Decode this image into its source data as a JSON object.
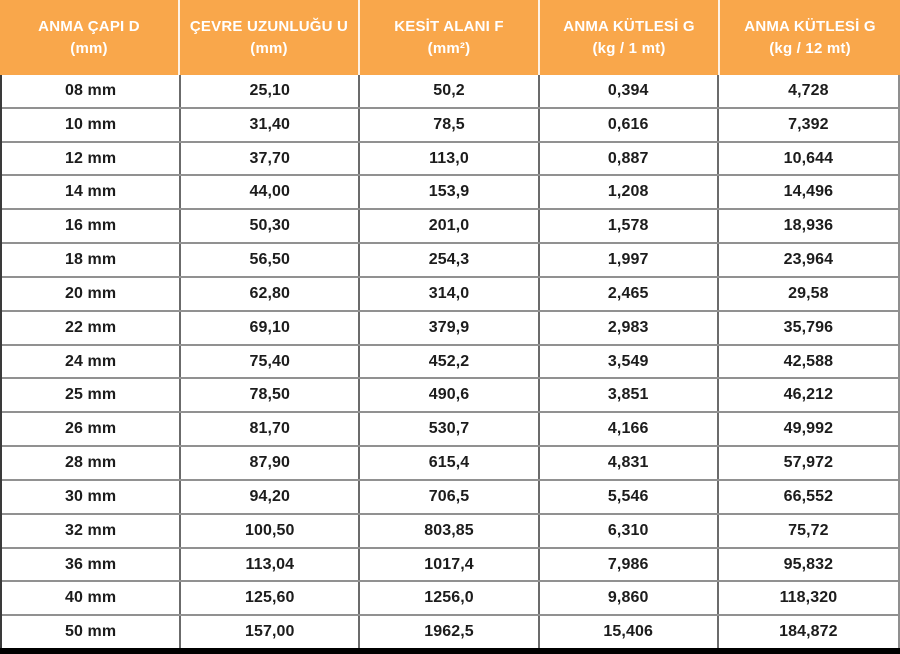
{
  "accent_color": "#F9A74B",
  "text_colors": {
    "header_text": "#FFFFFF",
    "body_text": "#1C1C1C",
    "grid_line": "#8F8F8F",
    "bottom_border": "#000000"
  },
  "table": {
    "headers": [
      {
        "title": "ANMA ÇAPI D",
        "unit": "(mm)"
      },
      {
        "title": "ÇEVRE UZUNLUĞU U",
        "unit": "(mm)"
      },
      {
        "title": "KESİT ALANI F",
        "unit": "(mm²)"
      },
      {
        "title": "ANMA KÜTLESİ G",
        "unit": "(kg / 1 mt)"
      },
      {
        "title": "ANMA KÜTLESİ G",
        "unit": "(kg / 12 mt)"
      }
    ],
    "rows": [
      [
        "08 mm",
        "25,10",
        "50,2",
        "0,394",
        "4,728"
      ],
      [
        "10 mm",
        "31,40",
        "78,5",
        "0,616",
        "7,392"
      ],
      [
        "12 mm",
        "37,70",
        "113,0",
        "0,887",
        "10,644"
      ],
      [
        "14 mm",
        "44,00",
        "153,9",
        "1,208",
        "14,496"
      ],
      [
        "16 mm",
        "50,30",
        "201,0",
        "1,578",
        "18,936"
      ],
      [
        "18 mm",
        "56,50",
        "254,3",
        "1,997",
        "23,964"
      ],
      [
        "20 mm",
        "62,80",
        "314,0",
        "2,465",
        "29,58"
      ],
      [
        "22 mm",
        "69,10",
        "379,9",
        "2,983",
        "35,796"
      ],
      [
        "24 mm",
        "75,40",
        "452,2",
        "3,549",
        "42,588"
      ],
      [
        "25 mm",
        "78,50",
        "490,6",
        "3,851",
        "46,212"
      ],
      [
        "26 mm",
        "81,70",
        "530,7",
        "4,166",
        "49,992"
      ],
      [
        "28 mm",
        "87,90",
        "615,4",
        "4,831",
        "57,972"
      ],
      [
        "30 mm",
        "94,20",
        "706,5",
        "5,546",
        "66,552"
      ],
      [
        "32 mm",
        "100,50",
        "803,85",
        "6,310",
        "75,72"
      ],
      [
        "36 mm",
        "113,04",
        "1017,4",
        "7,986",
        "95,832"
      ],
      [
        "40 mm",
        "125,60",
        "1256,0",
        "9,860",
        "118,320"
      ],
      [
        "50 mm",
        "157,00",
        "1962,5",
        "15,406",
        "184,872"
      ]
    ]
  },
  "chart_data": {
    "type": "table",
    "title": "",
    "columns": [
      "ANMA ÇAPI D (mm)",
      "ÇEVRE UZUNLUĞU U (mm)",
      "KESİT ALANI F (mm²)",
      "ANMA KÜTLESİ G (kg / 1 mt)",
      "ANMA KÜTLESİ G (kg / 12 mt)"
    ],
    "rows": [
      [
        "08 mm",
        "25,10",
        "50,2",
        "0,394",
        "4,728"
      ],
      [
        "10 mm",
        "31,40",
        "78,5",
        "0,616",
        "7,392"
      ],
      [
        "12 mm",
        "37,70",
        "113,0",
        "0,887",
        "10,644"
      ],
      [
        "14 mm",
        "44,00",
        "153,9",
        "1,208",
        "14,496"
      ],
      [
        "16 mm",
        "50,30",
        "201,0",
        "1,578",
        "18,936"
      ],
      [
        "18 mm",
        "56,50",
        "254,3",
        "1,997",
        "23,964"
      ],
      [
        "20 mm",
        "62,80",
        "314,0",
        "2,465",
        "29,58"
      ],
      [
        "22 mm",
        "69,10",
        "379,9",
        "2,983",
        "35,796"
      ],
      [
        "24 mm",
        "75,40",
        "452,2",
        "3,549",
        "42,588"
      ],
      [
        "25 mm",
        "78,50",
        "490,6",
        "3,851",
        "46,212"
      ],
      [
        "26 mm",
        "81,70",
        "530,7",
        "4,166",
        "49,992"
      ],
      [
        "28 mm",
        "87,90",
        "615,4",
        "4,831",
        "57,972"
      ],
      [
        "30 mm",
        "94,20",
        "706,5",
        "5,546",
        "66,552"
      ],
      [
        "32 mm",
        "100,50",
        "803,85",
        "6,310",
        "75,72"
      ],
      [
        "36 mm",
        "113,04",
        "1017,4",
        "7,986",
        "95,832"
      ],
      [
        "40 mm",
        "125,60",
        "1256,0",
        "9,860",
        "118,320"
      ],
      [
        "50 mm",
        "157,00",
        "1962,5",
        "15,406",
        "184,872"
      ]
    ]
  }
}
